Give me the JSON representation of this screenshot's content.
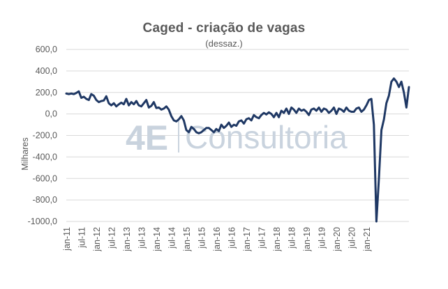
{
  "chart_data": {
    "type": "line",
    "title": "Caged - criação de vagas",
    "subtitle": "(dessaz.)",
    "ylabel": "Milhares",
    "ylim": [
      -1000,
      600
    ],
    "yticks": [
      600,
      400,
      200,
      0,
      -200,
      -400,
      -600,
      -800,
      -1000
    ],
    "ytick_labels": [
      "600,0",
      "400,0",
      "200,0",
      "0,0",
      "-200,0",
      "-400,0",
      "-600,0",
      "-800,0",
      "-1000,0"
    ],
    "xtick_labels": [
      "jan-11",
      "jul-11",
      "jan-12",
      "jul-12",
      "jan-13",
      "jul-13",
      "jan-14",
      "jul-14",
      "jan-15",
      "jul-15",
      "jan-16",
      "jul-16",
      "jan-17",
      "jul-17",
      "jan-18",
      "jul-18",
      "jan-19",
      "jul-19",
      "jan-20",
      "jul-20",
      "jan-21"
    ],
    "grid": true,
    "line_color": "#1f3864",
    "watermark": "4E Consultoria",
    "series": [
      {
        "values": [
          190,
          185,
          190,
          185,
          195,
          210,
          150,
          160,
          140,
          130,
          185,
          170,
          130,
          110,
          120,
          125,
          165,
          100,
          80,
          100,
          70,
          90,
          105,
          90,
          140,
          80,
          110,
          90,
          120,
          80,
          70,
          100,
          130,
          60,
          75,
          110,
          55,
          60,
          40,
          50,
          70,
          40,
          -20,
          -60,
          -70,
          -50,
          -20,
          -60,
          -150,
          -170,
          -120,
          -140,
          -170,
          -180,
          -170,
          -150,
          -130,
          -130,
          -150,
          -170,
          -140,
          -160,
          -100,
          -130,
          -110,
          -80,
          -120,
          -100,
          -110,
          -70,
          -60,
          -90,
          -50,
          -40,
          -60,
          -10,
          -30,
          -40,
          -10,
          10,
          -5,
          15,
          0,
          -30,
          10,
          -30,
          30,
          10,
          50,
          0,
          60,
          40,
          10,
          50,
          30,
          40,
          20,
          -10,
          40,
          50,
          30,
          60,
          20,
          50,
          40,
          10,
          30,
          60,
          0,
          50,
          40,
          20,
          60,
          30,
          20,
          20,
          50,
          60,
          20,
          40,
          80,
          130,
          140,
          -100,
          -1000,
          -600,
          -150,
          -50,
          100,
          170,
          300,
          330,
          300,
          250,
          300,
          200,
          60,
          250
        ]
      }
    ]
  }
}
